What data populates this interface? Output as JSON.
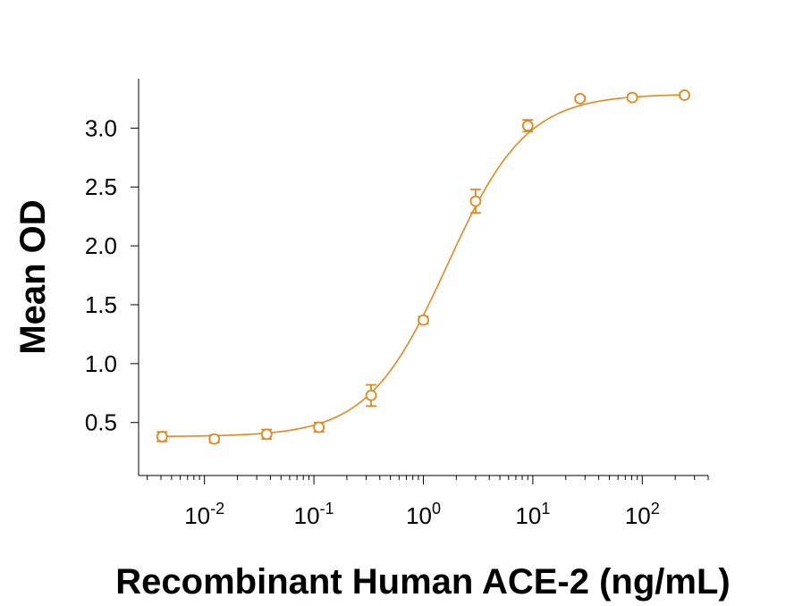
{
  "chart_data": {
    "type": "scatter",
    "xlabel": "Recombinant Human ACE-2 (ng/mL)",
    "ylabel": "Mean OD",
    "x_scale": "log",
    "xlim": [
      0.0025,
      400
    ],
    "ylim": [
      0.05,
      3.42
    ],
    "x_ticks": [
      {
        "value": 0.01,
        "base": "10",
        "exp": "-2"
      },
      {
        "value": 0.1,
        "base": "10",
        "exp": "-1"
      },
      {
        "value": 1,
        "base": "10",
        "exp": "0"
      },
      {
        "value": 10,
        "base": "10",
        "exp": "1"
      },
      {
        "value": 100,
        "base": "10",
        "exp": "2"
      }
    ],
    "y_ticks": [
      "0.5",
      "1.0",
      "1.5",
      "2.0",
      "2.5",
      "3.0"
    ],
    "color": "#E08A1E",
    "grid": false,
    "legend": "none",
    "series": [
      {
        "x": [
          0.0041,
          0.0123,
          0.037,
          0.111,
          0.333,
          1.0,
          3.0,
          9.0,
          27.0,
          81.0,
          243.0
        ],
        "y": [
          0.38,
          0.36,
          0.4,
          0.46,
          0.73,
          1.37,
          2.38,
          3.02,
          3.25,
          3.26,
          3.28
        ],
        "err": [
          0.04,
          0.03,
          0.04,
          0.04,
          0.09,
          0.03,
          0.1,
          0.05,
          0.02,
          0.02,
          0.02
        ]
      }
    ],
    "fit": {
      "type": "4PL",
      "bottom": 0.38,
      "top": 3.29,
      "ec50": 1.65,
      "hill": 1.2
    }
  }
}
